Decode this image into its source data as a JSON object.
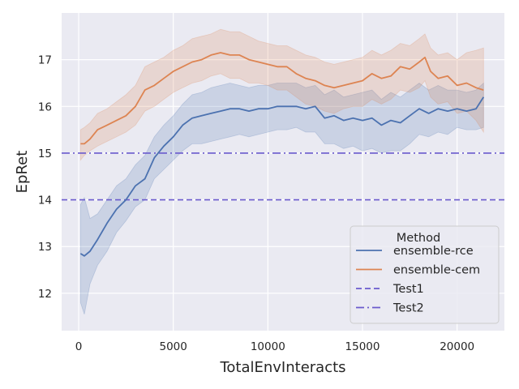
{
  "chart_data": {
    "type": "line",
    "title": "",
    "xlabel": "TotalEnvInteracts",
    "ylabel": "EpRet",
    "xlim": [
      -900,
      22500
    ],
    "ylim": [
      11.2,
      18.0
    ],
    "xticks": [
      0,
      5000,
      10000,
      15000,
      20000
    ],
    "yticks": [
      12,
      13,
      14,
      15,
      16,
      17
    ],
    "grid": true,
    "background": "#EAEAF2",
    "legend": {
      "title": "Method",
      "placement": "bottom-right"
    },
    "series": [
      {
        "name": "ensemble-rce",
        "color": "#4C72B0",
        "style": "solid",
        "band": true,
        "x": [
          100,
          300,
          600,
          1000,
          1500,
          2000,
          2500,
          3000,
          3500,
          4000,
          4500,
          5000,
          5500,
          6000,
          6500,
          7000,
          7500,
          8000,
          8500,
          9000,
          9500,
          10000,
          10500,
          11000,
          11500,
          12000,
          12500,
          13000,
          13500,
          14000,
          14500,
          15000,
          15500,
          16000,
          16500,
          17000,
          17500,
          18000,
          18500,
          19000,
          19500,
          20000,
          20500,
          21000,
          21400
        ],
        "y": [
          12.85,
          12.8,
          12.9,
          13.15,
          13.5,
          13.8,
          14.0,
          14.3,
          14.45,
          14.9,
          15.15,
          15.35,
          15.6,
          15.75,
          15.8,
          15.85,
          15.9,
          15.95,
          15.95,
          15.9,
          15.95,
          15.95,
          16.0,
          16.0,
          16.0,
          15.95,
          16.0,
          15.75,
          15.8,
          15.7,
          15.75,
          15.7,
          15.75,
          15.6,
          15.7,
          15.65,
          15.8,
          15.95,
          15.85,
          15.95,
          15.9,
          15.95,
          15.9,
          15.95,
          16.2
        ],
        "lower": [
          11.8,
          11.55,
          12.2,
          12.6,
          12.9,
          13.3,
          13.55,
          13.85,
          14.0,
          14.45,
          14.65,
          14.85,
          15.05,
          15.2,
          15.2,
          15.25,
          15.3,
          15.35,
          15.4,
          15.35,
          15.4,
          15.45,
          15.5,
          15.5,
          15.55,
          15.45,
          15.45,
          15.2,
          15.2,
          15.1,
          15.15,
          15.05,
          15.1,
          15.0,
          15.05,
          15.05,
          15.2,
          15.4,
          15.35,
          15.45,
          15.4,
          15.55,
          15.5,
          15.5,
          15.55
        ],
        "upper": [
          13.9,
          14.05,
          13.6,
          13.7,
          14.0,
          14.3,
          14.45,
          14.75,
          14.95,
          15.35,
          15.6,
          15.8,
          16.05,
          16.25,
          16.3,
          16.4,
          16.45,
          16.5,
          16.45,
          16.4,
          16.45,
          16.45,
          16.5,
          16.5,
          16.5,
          16.4,
          16.45,
          16.25,
          16.35,
          16.2,
          16.25,
          16.3,
          16.35,
          16.15,
          16.3,
          16.2,
          16.35,
          16.5,
          16.35,
          16.45,
          16.35,
          16.35,
          16.3,
          16.35,
          16.5
        ]
      },
      {
        "name": "ensemble-cem",
        "color": "#DD8452",
        "style": "solid",
        "band": true,
        "x": [
          100,
          300,
          600,
          1000,
          1500,
          2000,
          2500,
          3000,
          3500,
          4000,
          4500,
          5000,
          5500,
          6000,
          6500,
          7000,
          7500,
          8000,
          8500,
          9000,
          9500,
          10000,
          10500,
          11000,
          11500,
          12000,
          12500,
          13000,
          13500,
          14000,
          14500,
          15000,
          15500,
          16000,
          16500,
          17000,
          17500,
          18000,
          18300,
          18600,
          19000,
          19500,
          20000,
          20500,
          21000,
          21400
        ],
        "y": [
          15.2,
          15.2,
          15.3,
          15.5,
          15.6,
          15.7,
          15.8,
          16.0,
          16.35,
          16.45,
          16.6,
          16.75,
          16.85,
          16.95,
          17.0,
          17.1,
          17.15,
          17.1,
          17.1,
          17.0,
          16.95,
          16.9,
          16.85,
          16.85,
          16.7,
          16.6,
          16.55,
          16.45,
          16.4,
          16.45,
          16.5,
          16.55,
          16.7,
          16.6,
          16.65,
          16.85,
          16.8,
          16.95,
          17.05,
          16.75,
          16.6,
          16.65,
          16.45,
          16.5,
          16.4,
          16.35
        ],
        "lower": [
          14.85,
          14.95,
          15.05,
          15.15,
          15.25,
          15.35,
          15.45,
          15.6,
          15.9,
          16.0,
          16.15,
          16.3,
          16.4,
          16.5,
          16.55,
          16.65,
          16.7,
          16.6,
          16.6,
          16.5,
          16.5,
          16.45,
          16.35,
          16.35,
          16.2,
          16.05,
          16.0,
          15.9,
          15.85,
          15.95,
          16.0,
          16.0,
          16.15,
          16.05,
          16.15,
          16.35,
          16.3,
          16.4,
          16.55,
          16.2,
          16.05,
          16.1,
          15.85,
          15.9,
          15.7,
          15.45
        ],
        "upper": [
          15.5,
          15.55,
          15.65,
          15.85,
          15.95,
          16.1,
          16.25,
          16.45,
          16.85,
          16.95,
          17.05,
          17.2,
          17.3,
          17.45,
          17.5,
          17.55,
          17.65,
          17.6,
          17.6,
          17.5,
          17.4,
          17.35,
          17.3,
          17.3,
          17.2,
          17.1,
          17.05,
          16.95,
          16.9,
          16.95,
          17.0,
          17.05,
          17.2,
          17.1,
          17.2,
          17.35,
          17.3,
          17.45,
          17.55,
          17.25,
          17.1,
          17.15,
          17.0,
          17.15,
          17.2,
          17.25
        ]
      },
      {
        "name": "Test1",
        "color": "#6A5ACD",
        "style": "dashed",
        "hline": 14
      },
      {
        "name": "Test2",
        "color": "#6A5ACD",
        "style": "dashdot",
        "hline": 15
      }
    ]
  }
}
